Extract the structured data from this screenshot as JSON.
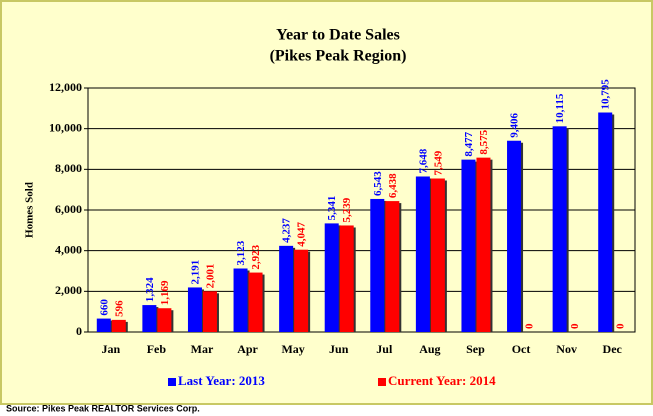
{
  "chart_data": {
    "type": "bar",
    "title": "Year to Date Sales",
    "subtitle": "(Pikes Peak Region)",
    "y_label": "Homes Sold",
    "source": "Source: Pikes Peak REALTOR Services Corp.",
    "categories": [
      "Jan",
      "Feb",
      "Mar",
      "Apr",
      "May",
      "Jun",
      "Jul",
      "Aug",
      "Sep",
      "Oct",
      "Nov",
      "Dec"
    ],
    "series": [
      {
        "name": "Last Year: 2013",
        "color": "#0000ff",
        "values": [
          660,
          1324,
          2191,
          3123,
          4237,
          5341,
          6543,
          7648,
          8477,
          9406,
          10115,
          10795
        ],
        "value_labels": [
          "660",
          "1,324",
          "2,191",
          "3,123",
          "4,237",
          "5,341",
          "6,543",
          "7,648",
          "8,477",
          "9,406",
          "10,115",
          "10,795"
        ]
      },
      {
        "name": "Current Year: 2014",
        "color": "#ff0000",
        "values": [
          596,
          1169,
          2001,
          2923,
          4047,
          5239,
          6438,
          7549,
          8575,
          0,
          0,
          0
        ],
        "value_labels": [
          "596",
          "1,169",
          "2,001",
          "2,923",
          "4,047",
          "5,239",
          "6,438",
          "7,549",
          "8,575",
          "0",
          "0",
          "0"
        ]
      }
    ],
    "ylim": [
      0,
      12000
    ],
    "yticks": [
      0,
      {
        "value": 2000,
        "label": "2,000"
      },
      {
        "value": 4000,
        "label": "4,000"
      },
      {
        "value": 6000,
        "label": "6,000"
      },
      {
        "value": 8000,
        "label": "8,000"
      },
      {
        "value": 10000,
        "label": "10,000"
      },
      {
        "value": 12000,
        "label": "12,000"
      }
    ],
    "grid": true,
    "legend": "bottom"
  }
}
